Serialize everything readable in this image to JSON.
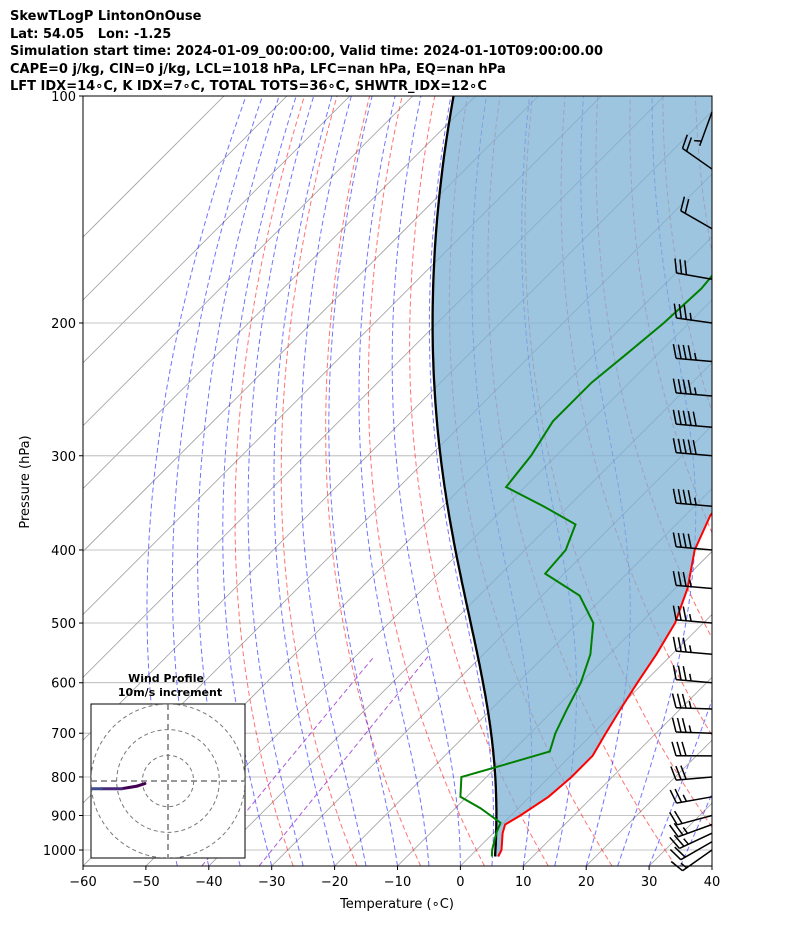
{
  "title_lines": [
    "SkewTLogP LintonOnOuse",
    "Lat: 54.05   Lon: -1.25",
    "Simulation start time: 2024-01-09_00:00:00, Valid time: 2024-01-10T09:00:00.00",
    "CAPE=0 j/kg, CIN=0 j/kg, LCL=1018 hPa, LFC=nan hPa, EQ=nan hPa",
    "LFT IDX=14∘C, K IDX=7∘C, TOTAL TOTS=36∘C, SHWTR_IDX=12∘C"
  ],
  "axes": {
    "xlabel": "Temperature (∘C)",
    "ylabel": "Pressure (hPa)",
    "xticks": [
      -60,
      -50,
      -40,
      -30,
      -20,
      -10,
      0,
      10,
      20,
      30,
      40
    ],
    "xtick_labels": [
      "−60",
      "−50",
      "−40",
      "−30",
      "−20",
      "−10",
      "0",
      "10",
      "20",
      "30",
      "40"
    ],
    "yticks": [
      1000,
      900,
      800,
      700,
      600,
      500,
      400,
      300,
      200,
      100
    ],
    "ytick_labels": [
      "1000",
      "900",
      "800",
      "700",
      "600",
      "500",
      "400",
      "300",
      "200",
      "100"
    ]
  },
  "inset": {
    "title_line1": "Wind Profile",
    "title_line2": "10m/s increment"
  },
  "colors": {
    "temperature": "#ff0000",
    "dewpoint": "#008000",
    "parcel": "#000000",
    "cape_fill": "#7eb1d5",
    "dry_adiabat": "#ff0000",
    "moist_adiabat": "#0000ff",
    "mixing_ratio": "#9933cc",
    "isotherm": "#9e9e9e"
  },
  "chart_data": {
    "type": "skew-t log-p",
    "xlim": [
      -60,
      40
    ],
    "ylim": [
      1050,
      100
    ],
    "temperature_profile": [
      {
        "p": 1020,
        "t": 4.5
      },
      {
        "p": 1000,
        "t": 4.0
      },
      {
        "p": 950,
        "t": 1.5
      },
      {
        "p": 925,
        "t": 0.5
      },
      {
        "p": 900,
        "t": 1.5
      },
      {
        "p": 850,
        "t": 3.0
      },
      {
        "p": 800,
        "t": 3.5
      },
      {
        "p": 750,
        "t": 3.5
      },
      {
        "p": 700,
        "t": 2.0
      },
      {
        "p": 650,
        "t": 0.5
      },
      {
        "p": 600,
        "t": -1.0
      },
      {
        "p": 550,
        "t": -2.5
      },
      {
        "p": 500,
        "t": -4.5
      },
      {
        "p": 450,
        "t": -8.0
      },
      {
        "p": 400,
        "t": -13.0
      },
      {
        "p": 360,
        "t": -16.0
      },
      {
        "p": 330,
        "t": -17.0
      },
      {
        "p": 300,
        "t": -19.0
      },
      {
        "p": 280,
        "t": -20.5
      },
      {
        "p": 250,
        "t": -22.5
      },
      {
        "p": 230,
        "t": -24.0
      },
      {
        "p": 210,
        "t": -26.0
      },
      {
        "p": 200,
        "t": -27.0
      },
      {
        "p": 180,
        "t": -31.5
      },
      {
        "p": 170,
        "t": -34.5
      },
      {
        "p": 160,
        "t": -37.5
      },
      {
        "p": 150,
        "t": -40.5
      },
      {
        "p": 140,
        "t": -43.0
      },
      {
        "p": 130,
        "t": -46.5
      },
      {
        "p": 120,
        "t": -50.0
      },
      {
        "p": 110,
        "t": -55.5
      },
      {
        "p": 100,
        "t": -61.0
      }
    ],
    "dewpoint_profile": [
      {
        "p": 1020,
        "t": 3.5
      },
      {
        "p": 1000,
        "t": 2.5
      },
      {
        "p": 950,
        "t": 0.5
      },
      {
        "p": 920,
        "t": -0.5
      },
      {
        "p": 880,
        "t": -6.0
      },
      {
        "p": 850,
        "t": -11.0
      },
      {
        "p": 800,
        "t": -14.0
      },
      {
        "p": 770,
        "t": -9.0
      },
      {
        "p": 740,
        "t": -4.0
      },
      {
        "p": 700,
        "t": -6.0
      },
      {
        "p": 650,
        "t": -8.0
      },
      {
        "p": 600,
        "t": -10.0
      },
      {
        "p": 550,
        "t": -13.0
      },
      {
        "p": 500,
        "t": -17.5
      },
      {
        "p": 460,
        "t": -24.0
      },
      {
        "p": 430,
        "t": -33.0
      },
      {
        "p": 400,
        "t": -33.5
      },
      {
        "p": 370,
        "t": -36.0
      },
      {
        "p": 350,
        "t": -44.0
      },
      {
        "p": 330,
        "t": -53.0
      },
      {
        "p": 300,
        "t": -54.0
      },
      {
        "p": 270,
        "t": -56.0
      },
      {
        "p": 240,
        "t": -56.0
      },
      {
        "p": 220,
        "t": -55.0
      },
      {
        "p": 200,
        "t": -54.0
      },
      {
        "p": 180,
        "t": -53.5
      },
      {
        "p": 160,
        "t": -54.5
      },
      {
        "p": 150,
        "t": -56.0
      },
      {
        "p": 130,
        "t": -53.0
      },
      {
        "p": 110,
        "t": -47.0
      },
      {
        "p": 100,
        "t": -43.0
      }
    ],
    "parcel_start": {
      "p": 1020,
      "t": 4.0
    },
    "wind_barbs": [
      {
        "p": 1000,
        "dir": 235,
        "kt": 15
      },
      {
        "p": 975,
        "dir": 240,
        "kt": 20
      },
      {
        "p": 950,
        "dir": 245,
        "kt": 25
      },
      {
        "p": 925,
        "dir": 250,
        "kt": 25
      },
      {
        "p": 900,
        "dir": 255,
        "kt": 20
      },
      {
        "p": 850,
        "dir": 260,
        "kt": 25
      },
      {
        "p": 800,
        "dir": 265,
        "kt": 30
      },
      {
        "p": 750,
        "dir": 270,
        "kt": 30
      },
      {
        "p": 700,
        "dir": 272,
        "kt": 35
      },
      {
        "p": 650,
        "dir": 272,
        "kt": 35
      },
      {
        "p": 600,
        "dir": 275,
        "kt": 35
      },
      {
        "p": 550,
        "dir": 275,
        "kt": 35
      },
      {
        "p": 500,
        "dir": 275,
        "kt": 35
      },
      {
        "p": 450,
        "dir": 275,
        "kt": 35
      },
      {
        "p": 400,
        "dir": 275,
        "kt": 40
      },
      {
        "p": 350,
        "dir": 275,
        "kt": 45
      },
      {
        "p": 300,
        "dir": 275,
        "kt": 50
      },
      {
        "p": 275,
        "dir": 275,
        "kt": 50
      },
      {
        "p": 250,
        "dir": 275,
        "kt": 45
      },
      {
        "p": 225,
        "dir": 275,
        "kt": 45
      },
      {
        "p": 200,
        "dir": 278,
        "kt": 35
      },
      {
        "p": 175,
        "dir": 280,
        "kt": 30
      },
      {
        "p": 150,
        "dir": 300,
        "kt": 20
      },
      {
        "p": 125,
        "dir": 305,
        "kt": 20
      },
      {
        "p": 105,
        "dir": 200,
        "kt": 5
      }
    ],
    "hodograph": {
      "max_radius_ms": 30,
      "ring_spacing_ms": 10,
      "u": [
        -9,
        -12,
        -18,
        -26,
        -33,
        -38,
        -42,
        -44,
        -45,
        -46,
        -47,
        -48,
        -47,
        -45,
        -42,
        -38
      ],
      "v": [
        -1,
        -2,
        -3,
        -3,
        -3,
        -2,
        -2,
        -1,
        -1,
        -1,
        -1,
        0,
        0,
        0,
        0,
        0
      ]
    }
  }
}
